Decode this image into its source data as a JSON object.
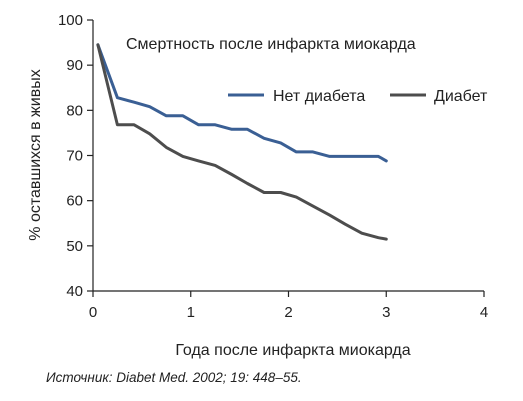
{
  "chart_data": {
    "type": "line",
    "title": "Смертность после инфаркта миокарда",
    "xlabel": "Года после инфаркта миокарда",
    "ylabel": "% оставшихся в живых",
    "xlim": [
      0,
      4
    ],
    "ylim": [
      40,
      100
    ],
    "xticks": [
      0,
      1,
      2,
      3,
      4
    ],
    "yticks": [
      40,
      50,
      60,
      70,
      80,
      90,
      100
    ],
    "grid": false,
    "legend_position": "top-right",
    "series": [
      {
        "name": "Нет диабета",
        "color": "#3a5f94",
        "x": [
          0.05,
          0.25,
          0.42,
          0.58,
          0.75,
          0.92,
          1.08,
          1.25,
          1.42,
          1.58,
          1.75,
          1.92,
          2.08,
          2.25,
          2.42,
          2.58,
          2.75,
          2.92,
          3.0
        ],
        "y": [
          94.5,
          82.8,
          81.8,
          80.8,
          78.8,
          78.8,
          76.8,
          76.8,
          75.8,
          75.8,
          73.8,
          72.8,
          70.8,
          70.8,
          69.8,
          69.8,
          69.8,
          69.8,
          68.8
        ]
      },
      {
        "name": "Диабет",
        "color": "#4d4d4d",
        "x": [
          0.05,
          0.25,
          0.42,
          0.58,
          0.75,
          0.92,
          1.08,
          1.25,
          1.42,
          1.58,
          1.75,
          1.92,
          2.08,
          2.25,
          2.42,
          2.58,
          2.75,
          2.92,
          3.0
        ],
        "y": [
          94.5,
          76.8,
          76.8,
          74.8,
          71.8,
          69.8,
          68.8,
          67.8,
          65.8,
          63.8,
          61.8,
          61.8,
          60.8,
          58.8,
          56.8,
          54.8,
          52.8,
          51.8,
          51.5
        ]
      }
    ]
  },
  "source": "Источник: Diabet Med. 2002; 19: 448–55."
}
